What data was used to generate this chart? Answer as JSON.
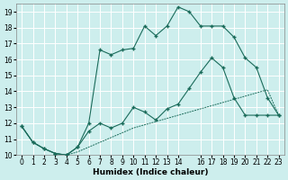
{
  "xlabel": "Humidex (Indice chaleur)",
  "bg_color": "#cdeeed",
  "line_color": "#1a6b5a",
  "grid_color": "#ffffff",
  "xlim": [
    -0.5,
    23.5
  ],
  "ylim": [
    10,
    19.5
  ],
  "xticks": [
    0,
    1,
    2,
    3,
    4,
    5,
    6,
    7,
    8,
    9,
    10,
    11,
    12,
    13,
    14,
    16,
    17,
    18,
    19,
    20,
    21,
    22,
    23
  ],
  "yticks": [
    10,
    11,
    12,
    13,
    14,
    15,
    16,
    17,
    18,
    19
  ],
  "line_bottom_x": [
    0,
    1,
    2,
    3,
    4,
    5,
    6,
    7,
    8,
    9,
    10,
    11,
    12,
    13,
    14,
    15,
    16,
    17,
    18,
    19,
    20,
    21,
    22,
    23
  ],
  "line_bottom_y": [
    11.8,
    10.8,
    10.4,
    10.1,
    10.0,
    10.2,
    10.5,
    10.8,
    11.1,
    11.4,
    11.7,
    11.9,
    12.1,
    12.3,
    12.5,
    12.7,
    12.9,
    13.1,
    13.3,
    13.5,
    13.7,
    13.9,
    14.1,
    12.5
  ],
  "line_mid_x": [
    0,
    1,
    2,
    3,
    4,
    5,
    6,
    7,
    8,
    9,
    10,
    11,
    12,
    13,
    14,
    15,
    16,
    17,
    18,
    19,
    20,
    21,
    22,
    23
  ],
  "line_mid_y": [
    11.8,
    10.8,
    10.4,
    10.1,
    10.0,
    10.5,
    11.5,
    12.0,
    11.7,
    12.0,
    13.0,
    12.7,
    12.2,
    12.9,
    13.2,
    14.2,
    15.2,
    16.1,
    15.5,
    13.6,
    12.5,
    12.5,
    12.5,
    12.5
  ],
  "line_top_x": [
    0,
    1,
    2,
    3,
    4,
    5,
    6,
    7,
    8,
    9,
    10,
    11,
    12,
    13,
    14,
    15,
    16,
    17,
    18,
    19,
    20,
    21,
    22,
    23
  ],
  "line_top_y": [
    11.8,
    10.8,
    10.4,
    10.1,
    10.0,
    10.5,
    12.0,
    16.6,
    16.3,
    16.6,
    16.7,
    18.1,
    17.5,
    18.1,
    19.3,
    19.0,
    18.1,
    18.1,
    18.1,
    17.4,
    16.1,
    15.5,
    13.6,
    12.5
  ]
}
